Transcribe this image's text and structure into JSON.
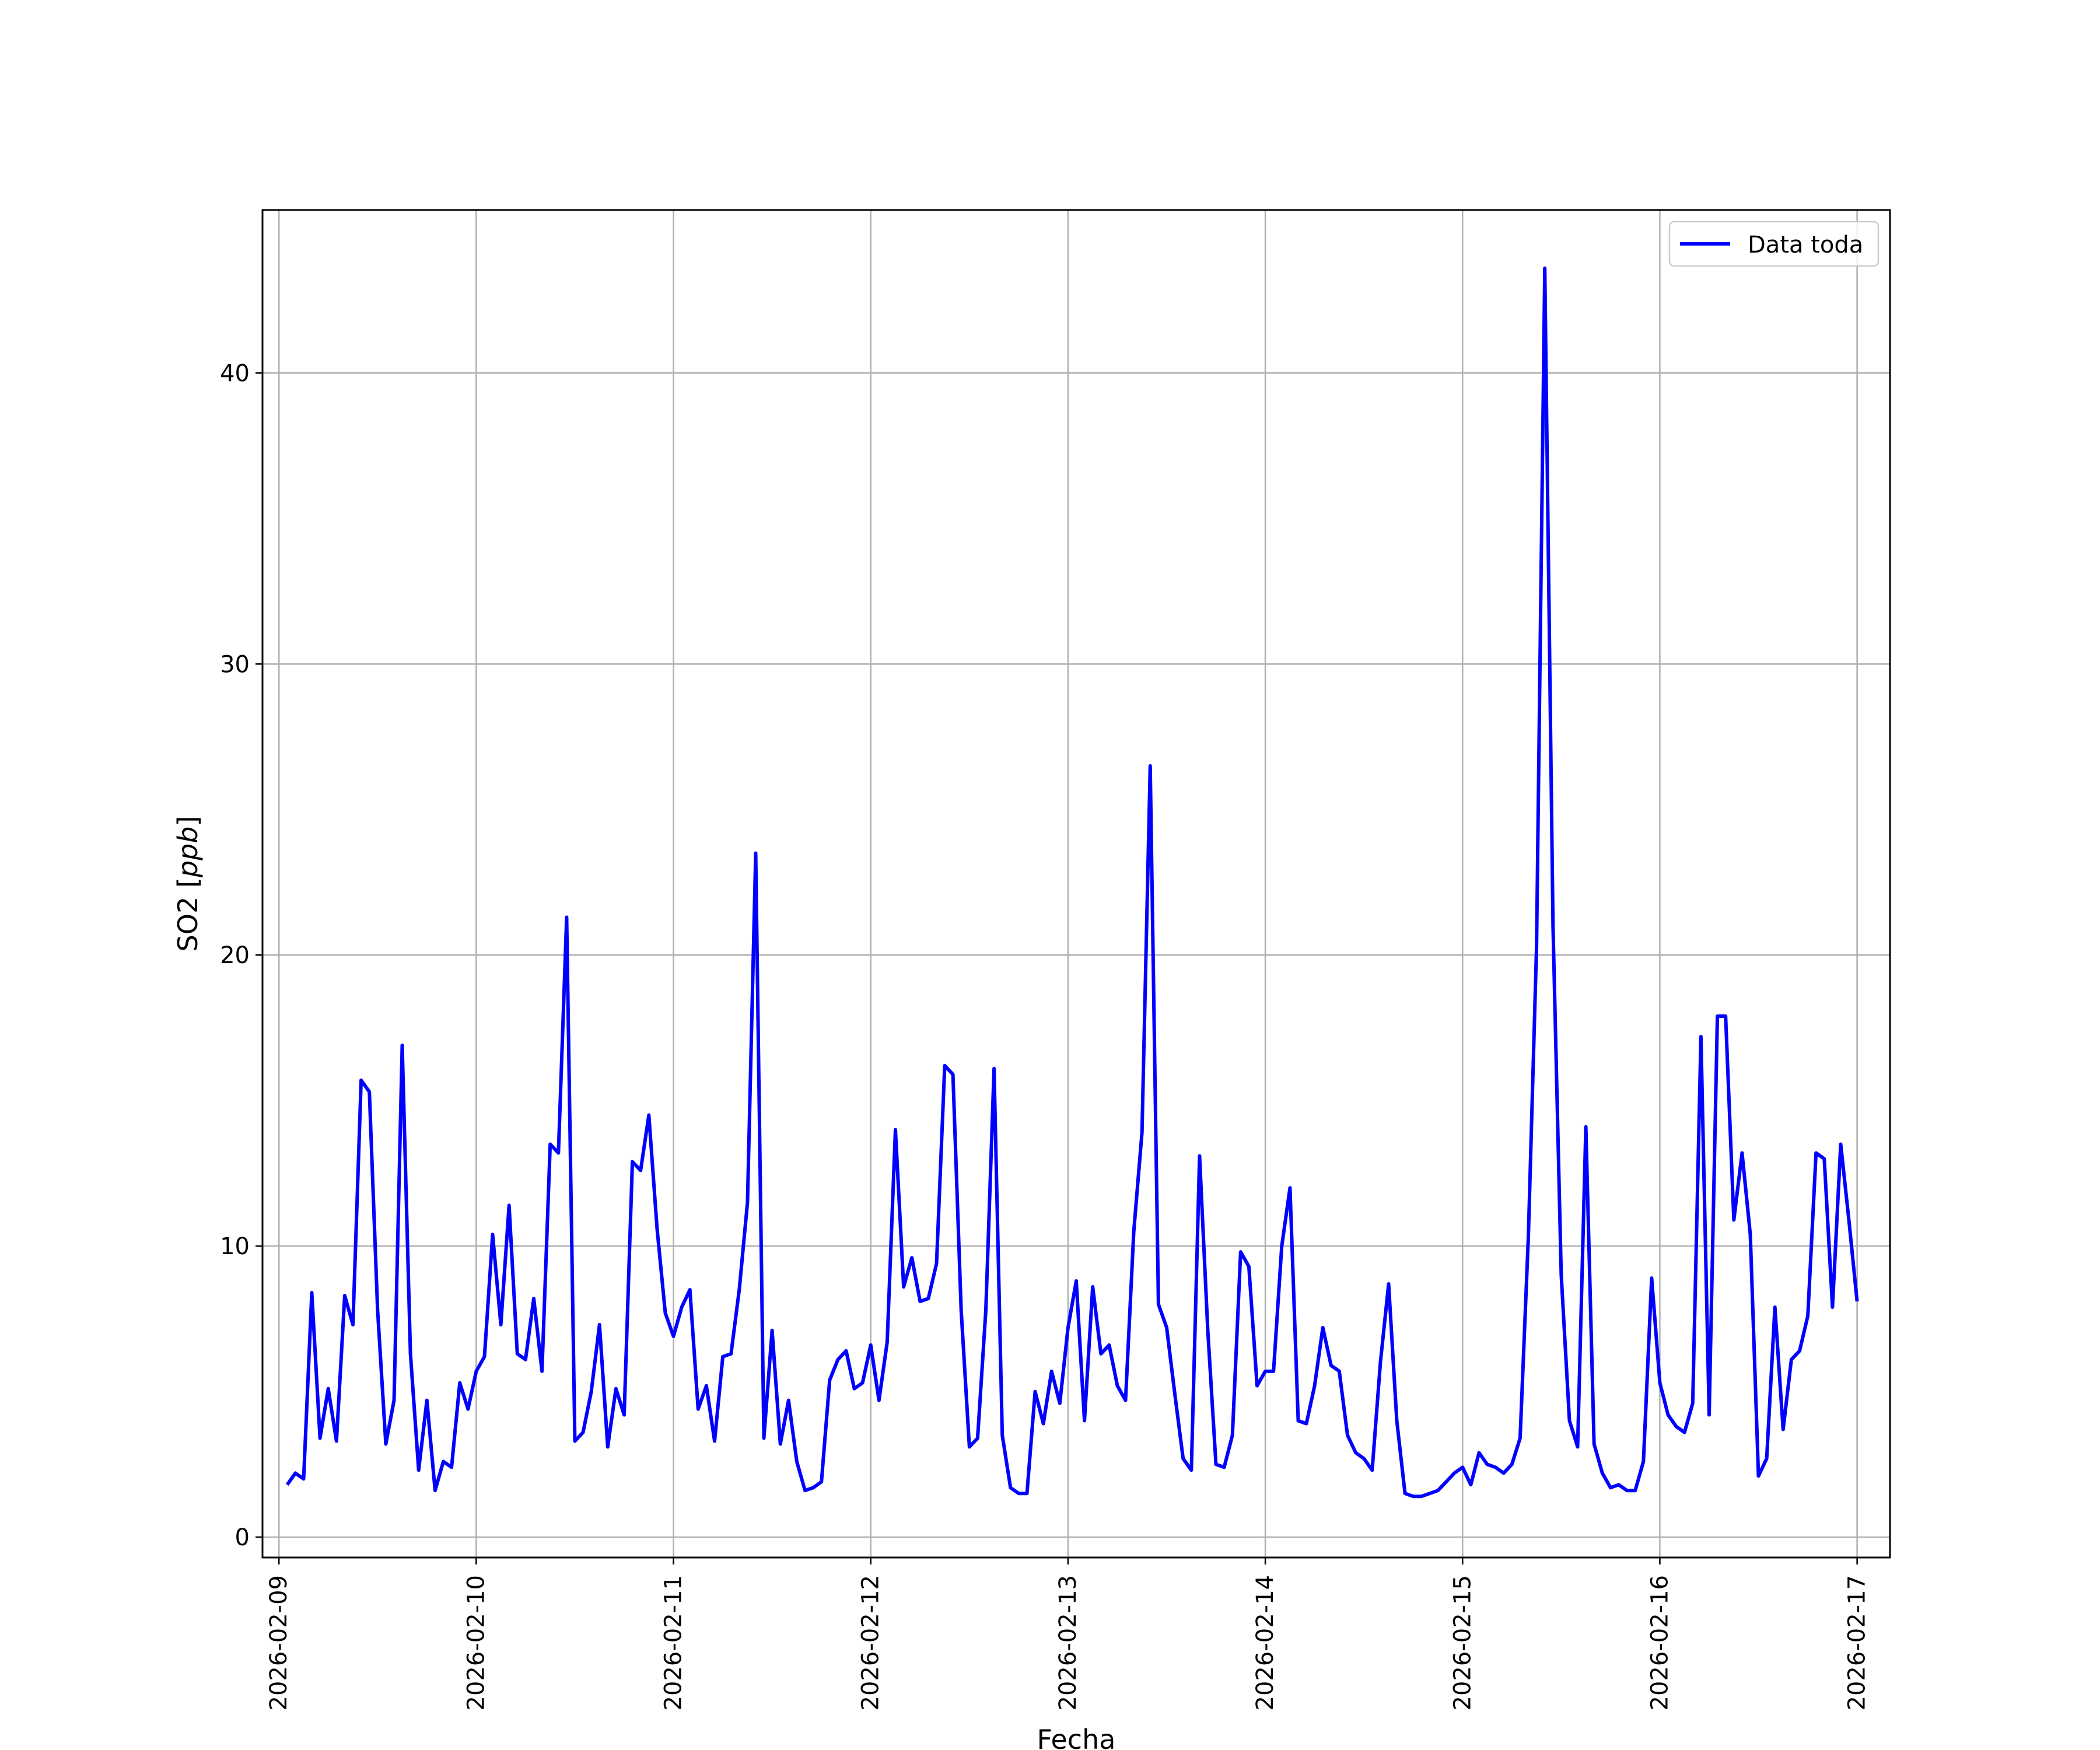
{
  "chart_data": {
    "type": "line",
    "title": "",
    "xlabel": "Fecha",
    "ylabel_text": "SO2 [",
    "ylabel_unit": "ppb",
    "ylabel_close": "]",
    "xlim": [
      "2026-02-08T22:00",
      "2026-02-17T04:00"
    ],
    "ylim": [
      -0.7,
      45.6
    ],
    "grid": true,
    "legend_position": "top-right",
    "x_ticks": [
      "2026-02-09",
      "2026-02-10",
      "2026-02-11",
      "2026-02-12",
      "2026-02-13",
      "2026-02-14",
      "2026-02-15",
      "2026-02-16",
      "2026-02-17"
    ],
    "y_ticks": [
      0,
      10,
      20,
      30,
      40
    ],
    "series": [
      {
        "name": "Data toda",
        "color": "#0000ff",
        "x_start": "2026-02-09T01:00",
        "x_interval": "1 hour",
        "values": [
          1.8,
          2.2,
          2.0,
          8.4,
          3.4,
          5.1,
          3.3,
          8.3,
          7.3,
          15.7,
          15.3,
          7.8,
          3.2,
          4.7,
          16.9,
          6.3,
          2.3,
          4.7,
          1.6,
          2.6,
          2.4,
          5.3,
          4.4,
          5.7,
          6.2,
          10.4,
          7.3,
          11.4,
          6.3,
          6.1,
          8.2,
          5.7,
          13.5,
          13.2,
          21.3,
          3.3,
          3.6,
          5.0,
          7.3,
          3.1,
          5.1,
          4.2,
          12.9,
          12.6,
          14.5,
          10.6,
          7.7,
          6.9,
          7.9,
          8.5,
          4.4,
          5.2,
          3.3,
          6.2,
          6.3,
          8.5,
          11.5,
          23.5,
          3.4,
          7.1,
          3.2,
          4.7,
          2.6,
          1.6,
          1.7,
          1.9,
          5.4,
          6.1,
          6.4,
          5.1,
          5.3,
          6.6,
          4.7,
          6.7,
          14.0,
          8.6,
          9.6,
          8.1,
          8.2,
          9.4,
          16.2,
          15.9,
          7.8,
          3.1,
          3.4,
          7.8,
          16.1,
          3.5,
          1.7,
          1.5,
          1.5,
          5.0,
          3.9,
          5.7,
          4.6,
          7.2,
          8.8,
          4.0,
          8.6,
          6.3,
          6.6,
          5.2,
          4.7,
          10.5,
          13.9,
          26.5,
          8.0,
          7.2,
          4.9,
          2.7,
          2.3,
          13.1,
          7.1,
          2.5,
          2.4,
          3.5,
          9.8,
          9.3,
          5.2,
          5.7,
          5.7,
          10.0,
          12.0,
          4.0,
          3.9,
          5.2,
          7.2,
          5.9,
          5.7,
          3.5,
          2.9,
          2.7,
          2.3,
          6.0,
          8.7,
          4.0,
          1.5,
          1.4,
          1.4,
          1.5,
          1.6,
          1.9,
          2.2,
          2.4,
          1.8,
          2.9,
          2.5,
          2.4,
          2.2,
          2.5,
          3.4,
          10.3,
          20.3,
          43.6,
          21.0,
          9.0,
          4.0,
          3.1,
          14.1,
          3.2,
          2.2,
          1.7,
          1.8,
          1.6,
          1.6,
          2.6,
          8.9,
          5.3,
          4.2,
          3.8,
          3.6,
          4.6,
          17.2,
          4.2,
          17.9,
          17.9,
          10.9,
          13.2,
          10.4,
          2.1,
          2.7,
          7.9,
          3.7,
          6.1,
          6.4,
          7.6,
          13.2,
          13.0,
          7.9,
          13.5,
          10.9,
          8.1
        ]
      }
    ]
  }
}
